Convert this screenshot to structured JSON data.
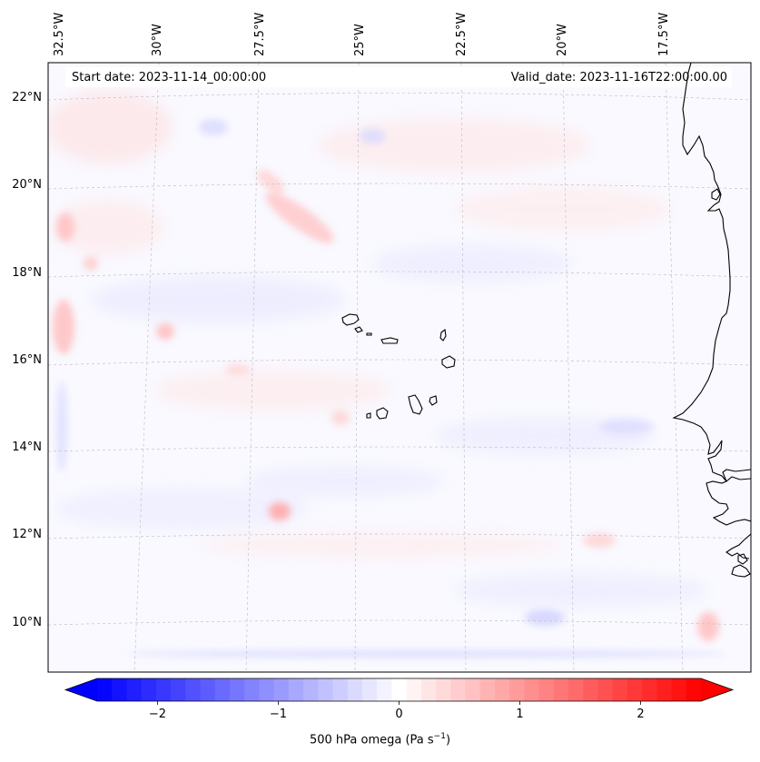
{
  "map": {
    "region": "Cape Verde Islands and West African coast",
    "start_date": "Start date: 2023-11-14_00:00:00",
    "valid_date": "Valid_date: 2023-11-16T22:00:00.00",
    "lon_labels": [
      "32.5°W",
      "30°W",
      "27.5°W",
      "25°W",
      "22.5°W",
      "20°W",
      "17.5°W"
    ],
    "lat_labels": [
      "22°N",
      "20°N",
      "18°N",
      "16°N",
      "14°N",
      "12°N",
      "10°N"
    ],
    "field_colors": {
      "negative": "#0000ff",
      "zero": "#ffffff",
      "positive": "#ff0000"
    }
  },
  "colorbar": {
    "label_main": "500 hPa omega (Pa s",
    "label_exp": "−1",
    "label_close": ")",
    "ticks": [
      {
        "value": -2,
        "label": "−2"
      },
      {
        "value": -1,
        "label": "−1"
      },
      {
        "value": 0,
        "label": "0"
      },
      {
        "value": 1,
        "label": "1"
      },
      {
        "value": 2,
        "label": "2"
      }
    ],
    "vmin": -2.5,
    "vmax": 2.5,
    "levels": 41
  }
}
